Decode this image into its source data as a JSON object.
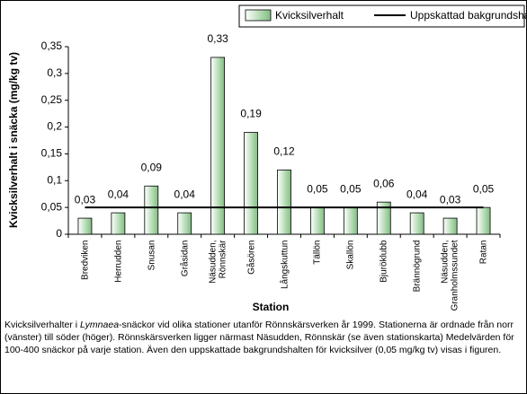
{
  "chart_data": {
    "type": "bar",
    "y_label": "Kvicksilverhalt i snäcka (mg/kg tv)",
    "x_label": "Station",
    "categories": [
      "Bredviken",
      "Herrudden",
      "Snusan",
      "Gråsidan",
      "Näsudden, Rönnskär",
      "Gåsören",
      "Långskuttun",
      "Tällön",
      "Skallön",
      "Bjuröklubb",
      "Brännögrund",
      "Näsudden, Granholmssundet",
      "Ratan"
    ],
    "series": [
      {
        "name": "Kvicksilverhalt",
        "type": "bar",
        "color": "#7fbf7f",
        "values": [
          0.03,
          0.04,
          0.09,
          0.04,
          0.33,
          0.19,
          0.12,
          0.05,
          0.05,
          0.06,
          0.04,
          0.03,
          0.05
        ],
        "value_labels": [
          "0,03",
          "0,04",
          "0,09",
          "0,04",
          "0,33",
          "0,19",
          "0,12",
          "0,05",
          "0,05",
          "0,06",
          "0,04",
          "0,03",
          "0,05"
        ]
      },
      {
        "name": "Uppskattad bakgrundshalt",
        "type": "line",
        "color": "#000000",
        "values": [
          0.05,
          0.05,
          0.05,
          0.05,
          0.05,
          0.05,
          0.05,
          0.05,
          0.05,
          0.05,
          0.05,
          0.05,
          0.05
        ]
      }
    ],
    "ylim": [
      0,
      0.35
    ],
    "yticks": [
      {
        "value": 0,
        "label": "0"
      },
      {
        "value": 0.05,
        "label": "0,05"
      },
      {
        "value": 0.1,
        "label": "0,1"
      },
      {
        "value": 0.15,
        "label": "0,15"
      },
      {
        "value": 0.2,
        "label": "0,2"
      },
      {
        "value": 0.25,
        "label": "0,25"
      },
      {
        "value": 0.3,
        "label": "0,3"
      },
      {
        "value": 0.35,
        "label": "0,35"
      }
    ],
    "legend": "top-right",
    "caption_parts": [
      "Kvicksilverhalter i ",
      "Lymnaea",
      "-snäckor vid olika stationer utanför Rönnskärsverken år 1999. Stationerna är ordnade från norr (vänster) till söder (höger). Rönnskärsverken ligger närmast Näsudden, Rönnskär (se även stationskarta) Medelvärden för 100-400 snäckor på varje station. Även den uppskattade bakgrundshalten för kvicksilver (0,05 mg/kg tv) visas i figuren."
    ]
  }
}
